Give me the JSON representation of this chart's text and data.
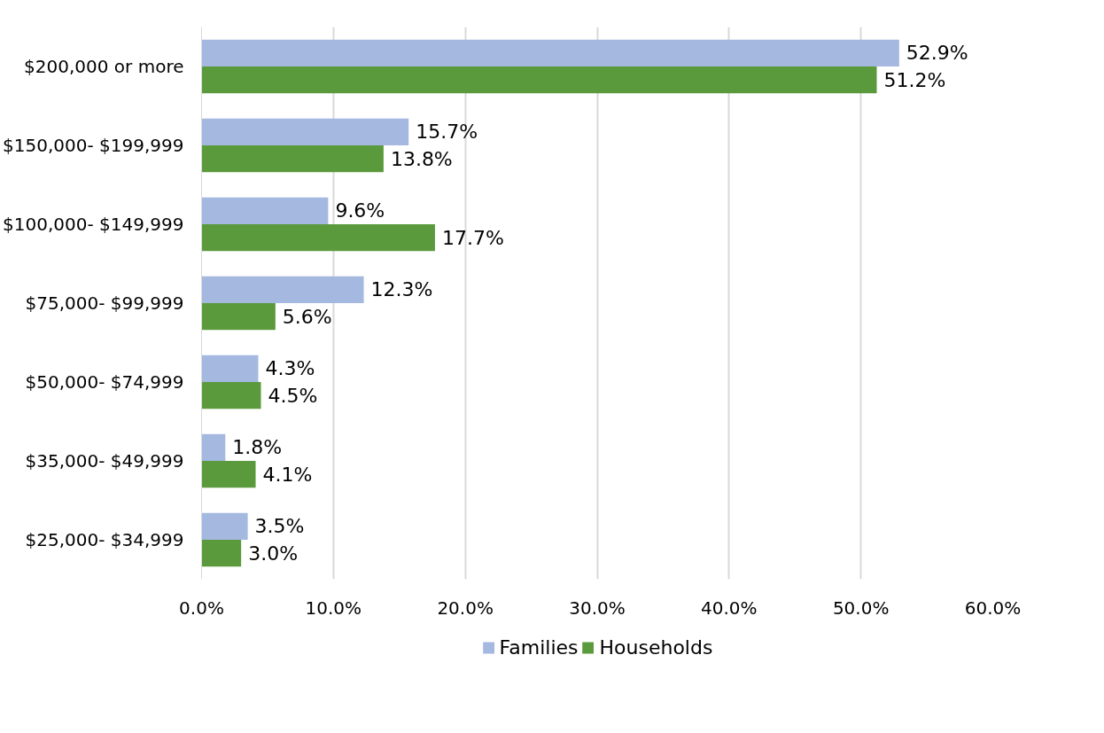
{
  "chart_data": {
    "type": "bar",
    "orientation": "horizontal",
    "categories": [
      "$200,000 or more",
      "$150,000- $199,999",
      "$100,000- $149,999",
      "$75,000- $99,999",
      "$50,000- $74,999",
      "$35,000- $49,999",
      "$25,000- $34,999"
    ],
    "series": [
      {
        "name": "Families",
        "color": "#a4b8e0",
        "values": [
          52.9,
          15.7,
          9.6,
          12.3,
          4.3,
          1.8,
          3.5
        ],
        "value_labels": [
          "52.9%",
          "15.7%",
          "9.6%",
          "12.3%",
          "4.3%",
          "1.8%",
          "3.5%"
        ]
      },
      {
        "name": "Households",
        "color": "#5b9a3c",
        "values": [
          51.2,
          13.8,
          17.7,
          5.6,
          4.5,
          4.1,
          3.0
        ],
        "value_labels": [
          "51.2%",
          "13.8%",
          "17.7%",
          "5.6%",
          "4.5%",
          "4.1%",
          "3.0%"
        ]
      }
    ],
    "xlim": [
      0,
      60
    ],
    "xticks": [
      {
        "value": 0,
        "label": "0.0%"
      },
      {
        "value": 10,
        "label": "10.0%"
      },
      {
        "value": 20,
        "label": "20.0%"
      },
      {
        "value": 30,
        "label": "30.0%"
      },
      {
        "value": 40,
        "label": "40.0%"
      },
      {
        "value": 50,
        "label": "50.0%"
      },
      {
        "value": 60,
        "label": "60.0%"
      }
    ],
    "grid": "x",
    "legend": "bottom"
  }
}
